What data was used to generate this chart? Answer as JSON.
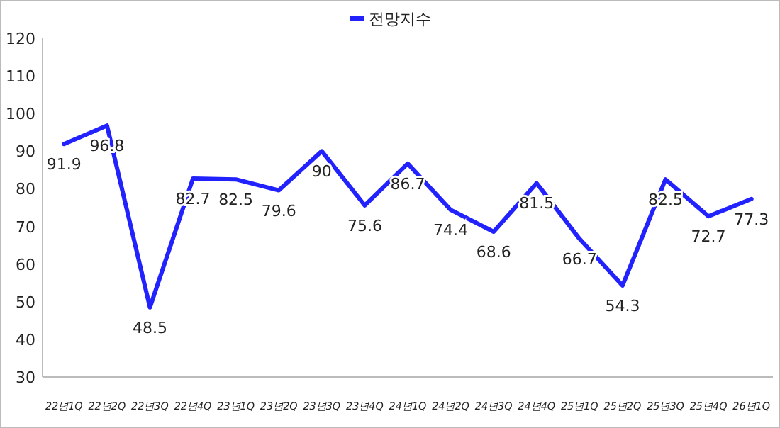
{
  "chart_data": {
    "type": "line",
    "categories": [
      "22년1Q",
      "22년2Q",
      "22년3Q",
      "22년4Q",
      "23년1Q",
      "23년2Q",
      "23년3Q",
      "23년4Q",
      "24년1Q",
      "24년2Q",
      "24년3Q",
      "24년4Q",
      "25년1Q",
      "25년2Q",
      "25년3Q",
      "25년4Q",
      "26년1Q"
    ],
    "series": [
      {
        "name": "전망지수",
        "color": "#2222ff",
        "values": [
          91.9,
          96.8,
          48.5,
          82.7,
          82.5,
          79.6,
          90,
          75.6,
          86.7,
          74.4,
          68.6,
          81.5,
          66.7,
          54.3,
          82.5,
          72.7,
          77.3
        ]
      }
    ],
    "ylim": [
      30,
      120
    ],
    "yticks": [
      30,
      40,
      50,
      60,
      70,
      80,
      90,
      100,
      110,
      120
    ],
    "data_labels": true,
    "legend": "top",
    "grid": false,
    "line_style": "solid"
  }
}
